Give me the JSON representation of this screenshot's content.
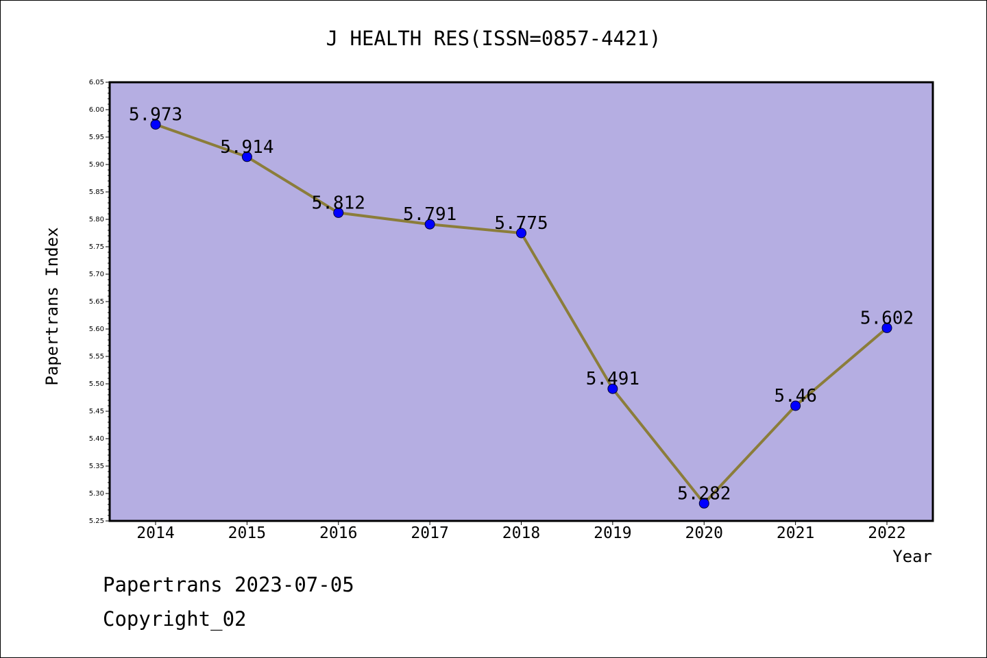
{
  "chart_data": {
    "type": "line",
    "title": "J HEALTH RES(ISSN=0857-4421)",
    "xlabel": "Year",
    "ylabel": "Papertrans Index",
    "x": [
      2014,
      2015,
      2016,
      2017,
      2018,
      2019,
      2020,
      2021,
      2022
    ],
    "categories": [
      "2014",
      "2015",
      "2016",
      "2017",
      "2018",
      "2019",
      "2020",
      "2021",
      "2022"
    ],
    "series": [
      {
        "values": [
          5.973,
          5.914,
          5.812,
          5.791,
          5.775,
          5.491,
          5.282,
          5.46,
          5.602
        ]
      }
    ],
    "data_labels": [
      "5.973",
      "5.914",
      "5.812",
      "5.791",
      "5.775",
      "5.491",
      "5.282",
      "5.46",
      "5.602"
    ],
    "ylim": [
      5.25,
      6.05
    ],
    "yticks": [
      "5.25",
      "5.30",
      "5.35",
      "5.40",
      "5.45",
      "5.50",
      "5.55",
      "5.60",
      "5.65",
      "5.70",
      "5.75",
      "5.80",
      "5.85",
      "5.90",
      "5.95",
      "6.00",
      "6.05"
    ],
    "grid": false,
    "colors": {
      "plot_background": "#b5aee2",
      "line": "#8b7d3a",
      "marker": "#0000ff"
    }
  },
  "footer": {
    "line1": "Papertrans 2023-07-05",
    "line2": "Copyright_02"
  }
}
